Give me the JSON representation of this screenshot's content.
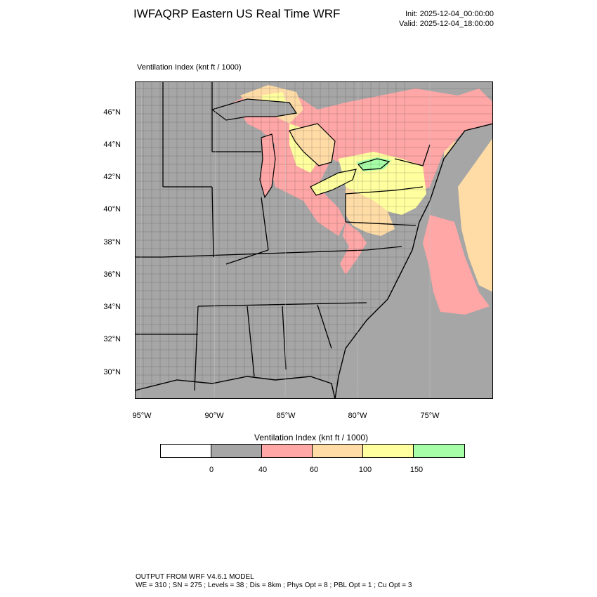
{
  "header": {
    "title": "IWFAQRP Eastern US Real Time WRF",
    "init": "Init: 2025-12-04_00:00:00",
    "valid": "Valid: 2025-12-04_18:00:00"
  },
  "map": {
    "title": "Ventilation Index   (knt ft / 1000)",
    "lat_labels": [
      "46°N",
      "44°N",
      "42°N",
      "40°N",
      "38°N",
      "36°N",
      "34°N",
      "32°N",
      "30°N"
    ],
    "lon_labels": [
      "95°W",
      "90°W",
      "85°W",
      "80°W",
      "75°W"
    ],
    "colors": {
      "land_low": "#a6a6a6",
      "pink": "#ffa6a6",
      "orange": "#ffdca6",
      "yellow": "#ffff9f",
      "green": "#a6ffa6",
      "border": "#000000"
    }
  },
  "legend": {
    "title": "Ventilation Index  (knt ft / 1000)",
    "colors": [
      "#ffffff",
      "#a6a6a6",
      "#ffa6a6",
      "#ffdca6",
      "#ffff9f",
      "#a6ffa6"
    ],
    "ticks": [
      "0",
      "40",
      "60",
      "100",
      "150"
    ]
  },
  "footer": {
    "line1": "OUTPUT FROM WRF V4.6.1 MODEL",
    "line2": "WE = 310 ; SN = 275 ; Levels = 38 ; Dis = 8km ; Phys Opt = 8 ; PBL Opt = 1 ; Cu Opt = 3"
  }
}
